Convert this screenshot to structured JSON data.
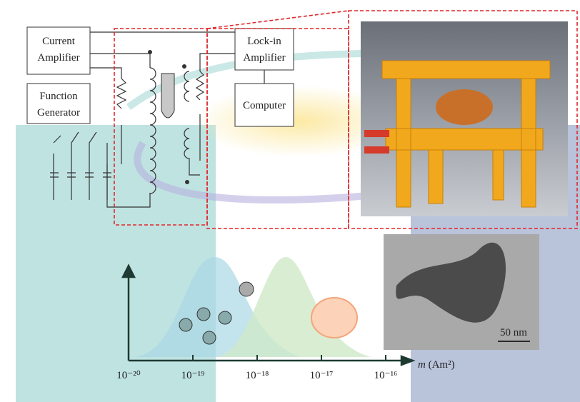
{
  "circuit": {
    "current_amplifier": [
      "Current",
      "Amplifier"
    ],
    "function_generator": [
      "Function",
      "Generator"
    ],
    "lockin_amplifier": [
      "Lock-in",
      "Amplifier"
    ],
    "computer": "Computer"
  },
  "tem_image": {
    "scale_bar": "50 nm"
  },
  "moment_axis": {
    "symbol": "m",
    "unit": "(Am²)",
    "ticks": [
      "10⁻²⁰",
      "10⁻¹⁹",
      "10⁻¹⁸",
      "10⁻¹⁷",
      "10⁻¹⁶"
    ]
  }
}
